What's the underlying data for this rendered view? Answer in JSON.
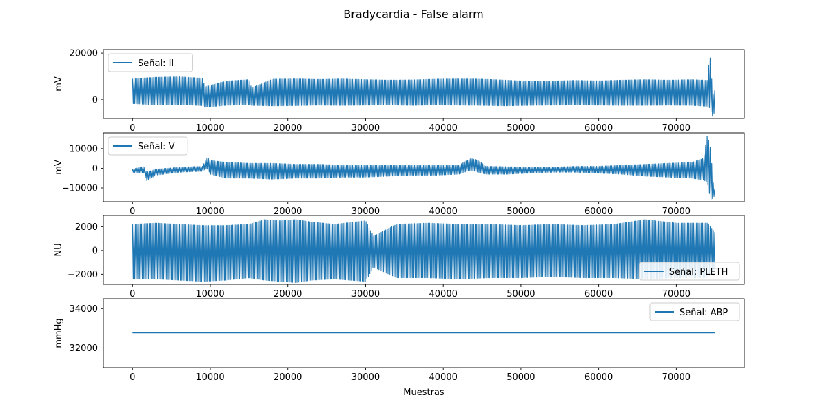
{
  "figure": {
    "title": "Bradycardia - False alarm",
    "xlabel": "Muestras",
    "series_color": "#1f77b4"
  },
  "chart_data": [
    {
      "type": "line",
      "title": "",
      "xlabel": "",
      "ylabel": "mV",
      "legend_label": "Señal: II",
      "legend_placement": "upper-left",
      "xlim": [
        -3750,
        78750
      ],
      "ylim": [
        -8000,
        21500
      ],
      "xticks": [
        0,
        10000,
        20000,
        30000,
        40000,
        50000,
        60000,
        70000
      ],
      "yticks": [
        0,
        20000
      ],
      "grid": false,
      "series": [
        {
          "x": [
            0,
            3000,
            6000,
            9000,
            9300,
            12000,
            15000,
            15300,
            18000,
            21000,
            24000,
            27000,
            30000,
            33000,
            36000,
            39000,
            42000,
            45000,
            48000,
            51000,
            54000,
            57000,
            60000,
            63000,
            66000,
            69000,
            72000,
            74000,
            74300,
            74700,
            75000
          ],
          "upper": [
            9000,
            9600,
            9800,
            9200,
            5500,
            8000,
            8600,
            5000,
            8800,
            8900,
            8700,
            8900,
            8600,
            8400,
            8500,
            8800,
            8900,
            8800,
            8400,
            7900,
            8000,
            8300,
            8100,
            8400,
            8600,
            8400,
            8600,
            8300,
            20500,
            2000,
            4500
          ],
          "lower": [
            -1600,
            -2200,
            -2000,
            -2500,
            -3200,
            -2400,
            -2000,
            -2400,
            -2600,
            -2500,
            -2300,
            -2400,
            -2300,
            -2200,
            -2400,
            -2200,
            -2300,
            -2400,
            -2600,
            -2400,
            -2300,
            -2200,
            -2300,
            -2400,
            -2400,
            -2300,
            -2400,
            -2800,
            -3500,
            -7500,
            -4000
          ],
          "values_note": "approximate oscillation envelope"
        }
      ]
    },
    {
      "type": "line",
      "title": "",
      "xlabel": "",
      "ylabel": "mV",
      "legend_label": "Señal: V",
      "legend_placement": "upper-left",
      "xlim": [
        -3750,
        78750
      ],
      "ylim": [
        -17000,
        18000
      ],
      "xticks": [
        0,
        10000,
        20000,
        30000,
        40000,
        50000,
        60000,
        70000
      ],
      "yticks": [
        -10000,
        0,
        10000
      ],
      "grid": false,
      "series": [
        {
          "x": [
            0,
            1500,
            1800,
            3000,
            6000,
            9000,
            9600,
            10000,
            12000,
            15000,
            18000,
            21000,
            24000,
            27000,
            30000,
            33000,
            36000,
            39000,
            42000,
            43500,
            44500,
            45500,
            48000,
            51000,
            54000,
            57000,
            60000,
            63000,
            66000,
            69000,
            72000,
            73500,
            74000,
            74400,
            74800,
            75000
          ],
          "upper": [
            -500,
            1000,
            -2000,
            -500,
            500,
            1000,
            5500,
            4000,
            3000,
            2500,
            2500,
            2000,
            2000,
            1500,
            1500,
            1500,
            1500,
            1500,
            1500,
            5000,
            4000,
            1000,
            800,
            500,
            500,
            1000,
            1000,
            1500,
            2000,
            2500,
            3000,
            5000,
            17000,
            10000,
            -10000,
            -11000
          ],
          "lower": [
            -2000,
            -2500,
            -6500,
            -3500,
            -2000,
            -1500,
            0,
            -3000,
            -5000,
            -5000,
            -5500,
            -5000,
            -5000,
            -4500,
            -4500,
            -4000,
            -3500,
            -3500,
            -3000,
            -1000,
            -2000,
            -3000,
            -3000,
            -2500,
            -2000,
            -2000,
            -2500,
            -3000,
            -4000,
            -4500,
            -5000,
            -6000,
            -7000,
            -16000,
            -15000,
            -12000
          ],
          "values_note": "approximate oscillation envelope"
        }
      ]
    },
    {
      "type": "line",
      "title": "",
      "xlabel": "",
      "ylabel": "NU",
      "legend_label": "Señal: PLETH",
      "legend_placement": "lower-right",
      "xlim": [
        -3750,
        78750
      ],
      "ylim": [
        -2850,
        2950
      ],
      "xticks": [
        0,
        10000,
        20000,
        30000,
        40000,
        50000,
        60000,
        70000
      ],
      "yticks": [
        -2000,
        0,
        2000
      ],
      "grid": false,
      "series": [
        {
          "x": [
            0,
            3000,
            6000,
            9000,
            12000,
            15000,
            17000,
            19000,
            21000,
            23000,
            26000,
            30000,
            31000,
            34000,
            38000,
            42000,
            46000,
            50000,
            54000,
            58000,
            62000,
            66000,
            70000,
            74000,
            75000
          ],
          "upper": [
            2200,
            2300,
            2200,
            2100,
            2100,
            2200,
            2600,
            2500,
            2600,
            2400,
            2200,
            2500,
            1200,
            2200,
            2300,
            2200,
            2200,
            2100,
            2200,
            2100,
            2200,
            2600,
            2300,
            2300,
            1500
          ],
          "lower": [
            -2400,
            -2400,
            -2500,
            -2600,
            -2500,
            -2300,
            -2500,
            -2600,
            -2700,
            -2500,
            -2400,
            -2600,
            -1400,
            -2300,
            -2300,
            -2400,
            -2300,
            -2300,
            -2200,
            -2300,
            -2300,
            -2400,
            -2300,
            -2300,
            -1500
          ],
          "values_note": "approximate oscillation envelope"
        }
      ]
    },
    {
      "type": "line",
      "title": "",
      "xlabel": "Muestras",
      "ylabel": "mmHg",
      "legend_label": "Señal: ABP",
      "legend_placement": "upper-right",
      "xlim": [
        -3750,
        78750
      ],
      "ylim": [
        31000,
        34500
      ],
      "xticks": [
        0,
        10000,
        20000,
        30000,
        40000,
        50000,
        60000,
        70000
      ],
      "yticks": [
        32000,
        34000
      ],
      "grid": false,
      "series": [
        {
          "x": [
            0,
            75000
          ],
          "values": [
            32767,
            32767
          ]
        }
      ]
    }
  ]
}
